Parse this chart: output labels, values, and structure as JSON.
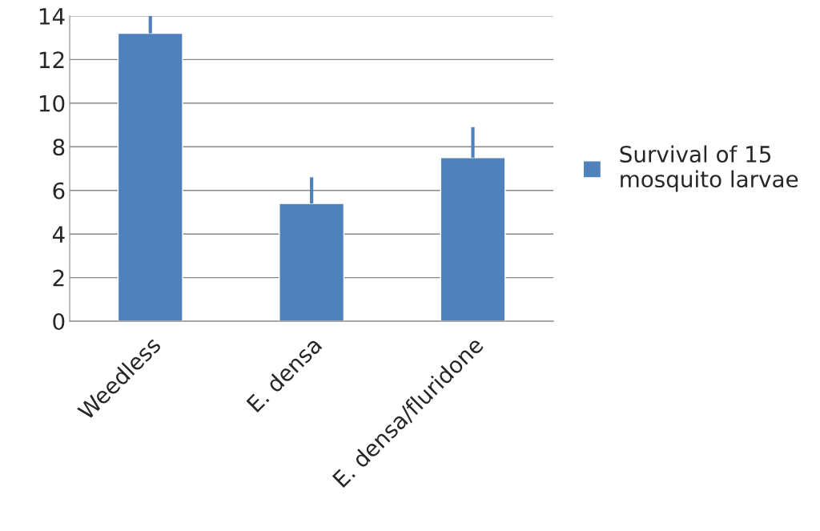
{
  "chart_data": {
    "type": "bar",
    "categories": [
      "Weedless",
      "E. densa",
      "E. densa/fluridone"
    ],
    "series": [
      {
        "name": "Survival of 15 mosquito larvae",
        "color": "#4f81bd",
        "values": [
          13.2,
          5.4,
          7.5
        ],
        "errors": [
          [
            13.2,
            14.0
          ],
          [
            5.4,
            6.6
          ],
          [
            7.5,
            8.9
          ]
        ]
      }
    ],
    "ylim": [
      0,
      14
    ],
    "yticks": [
      0,
      2,
      4,
      6,
      8,
      10,
      12,
      14
    ],
    "grid": "y",
    "legend": "right"
  }
}
